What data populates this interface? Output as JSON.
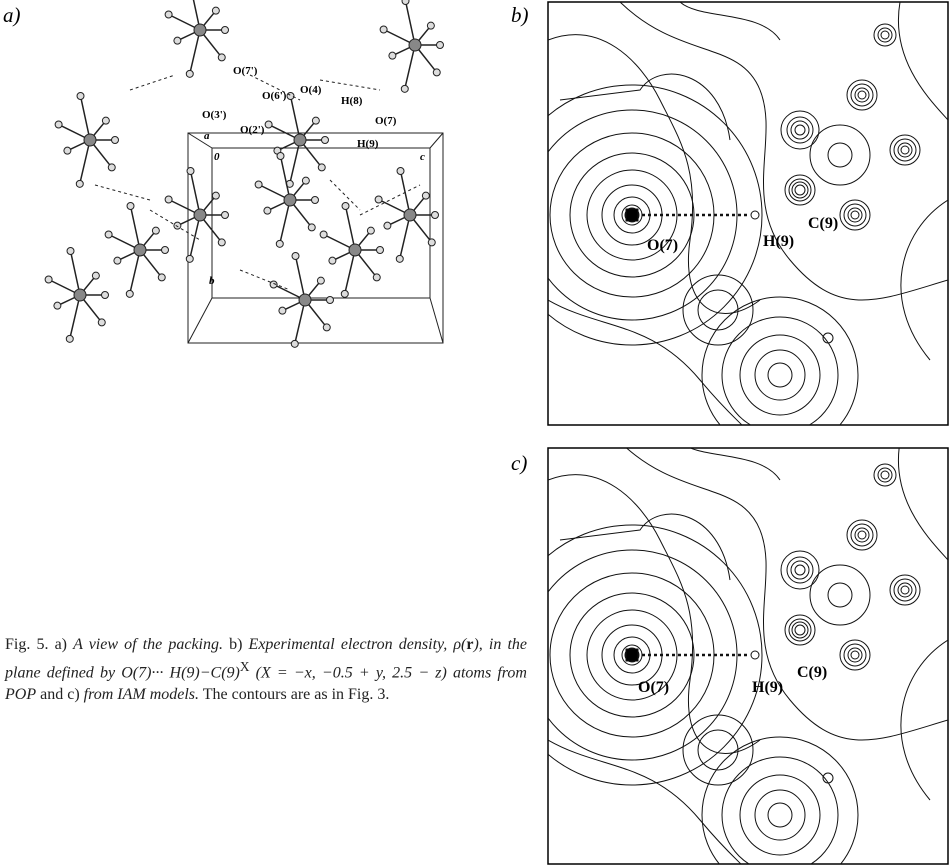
{
  "panels": [
    {
      "label": "a)",
      "atoms": [
        "O(7')",
        "O(6')",
        "O(4)",
        "H(8)",
        "O(3')",
        "O(2')",
        "O(7)",
        "H(9)"
      ],
      "axes": [
        "a",
        "0",
        "c",
        "b"
      ]
    },
    {
      "label": "b)",
      "atoms": [
        "C(9)",
        "O(7)",
        "H(9)"
      ]
    },
    {
      "label": "c)",
      "atoms": [
        "C(9)",
        "O(7)",
        "H(9)"
      ]
    }
  ],
  "caption": {
    "parts": [
      {
        "text": "Fig. 5. a) ",
        "style": "normal"
      },
      {
        "text": "A view of the packing.",
        "style": "italic"
      },
      {
        "text": " b) ",
        "style": "normal"
      },
      {
        "text": "Experimental electron density, ρ(",
        "style": "italic"
      },
      {
        "text": "r",
        "style": "bold"
      },
      {
        "text": "), in the plane defined by O(7)··· H(9)−C(9)",
        "style": "italic"
      },
      {
        "text": "X",
        "style": "sup"
      },
      {
        "text": " (X = −x, −0.5 + y, 2.5 − z) atoms from POP",
        "style": "italic"
      },
      {
        "text": " and c)",
        "style": "normal"
      },
      {
        "text": " from IAM models.",
        "style": "italic"
      },
      {
        "text": " The contours are as in Fig. 3.",
        "style": "normal"
      }
    ]
  }
}
